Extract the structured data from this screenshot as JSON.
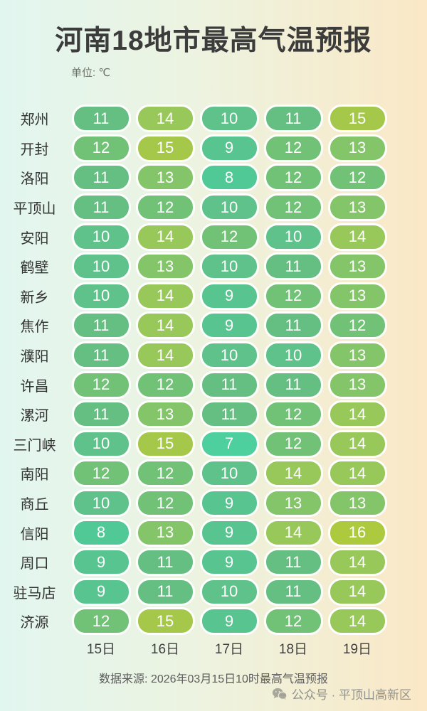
{
  "header": {
    "title": "河南18地市最高气温预报",
    "unit_label": "单位: ℃"
  },
  "chart_data": {
    "type": "heatmap",
    "title": "河南18地市最高气温预报",
    "unit": "℃",
    "categories": [
      "15日",
      "16日",
      "17日",
      "18日",
      "19日"
    ],
    "series": [
      {
        "name": "郑州",
        "values": [
          11,
          14,
          10,
          11,
          15
        ]
      },
      {
        "name": "开封",
        "values": [
          12,
          15,
          9,
          12,
          13
        ]
      },
      {
        "name": "洛阳",
        "values": [
          11,
          13,
          8,
          12,
          12
        ]
      },
      {
        "name": "平顶山",
        "values": [
          11,
          12,
          10,
          12,
          13
        ]
      },
      {
        "name": "安阳",
        "values": [
          10,
          14,
          12,
          10,
          14
        ]
      },
      {
        "name": "鹤壁",
        "values": [
          10,
          13,
          10,
          11,
          13
        ]
      },
      {
        "name": "新乡",
        "values": [
          10,
          14,
          9,
          12,
          13
        ]
      },
      {
        "name": "焦作",
        "values": [
          11,
          14,
          9,
          11,
          12
        ]
      },
      {
        "name": "濮阳",
        "values": [
          11,
          14,
          10,
          10,
          13
        ]
      },
      {
        "name": "许昌",
        "values": [
          12,
          12,
          11,
          11,
          13
        ]
      },
      {
        "name": "漯河",
        "values": [
          11,
          13,
          11,
          12,
          14
        ]
      },
      {
        "name": "三门峡",
        "values": [
          10,
          15,
          7,
          12,
          14
        ]
      },
      {
        "name": "南阳",
        "values": [
          12,
          12,
          10,
          14,
          14
        ]
      },
      {
        "name": "商丘",
        "values": [
          10,
          12,
          9,
          13,
          13
        ]
      },
      {
        "name": "信阳",
        "values": [
          8,
          13,
          9,
          14,
          16
        ]
      },
      {
        "name": "周口",
        "values": [
          9,
          11,
          9,
          11,
          14
        ]
      },
      {
        "name": "驻马店",
        "values": [
          9,
          11,
          10,
          11,
          14
        ]
      },
      {
        "name": "济源",
        "values": [
          12,
          15,
          9,
          12,
          14
        ]
      }
    ],
    "value_range": [
      7,
      16
    ]
  },
  "table": {
    "dates": [
      "15日",
      "16日",
      "17日",
      "18日",
      "19日"
    ]
  },
  "temp_colors": {
    "7": "#4ecf9e",
    "8": "#51c996",
    "9": "#58c591",
    "10": "#5ec28a",
    "11": "#66bf82",
    "12": "#71c277",
    "13": "#84c56a",
    "14": "#98c75a",
    "15": "#a5c84b",
    "16": "#adc93e"
  },
  "colors": {
    "background_left": "#e2f6f0",
    "background_right": "#fae8c6",
    "pill_border": "#ffffff",
    "pill_text": "#ffffff",
    "title_text": "#3c3c3c"
  },
  "footer": {
    "source": "数据来源: 2026年03月15日10时最高气温预报",
    "wechat_icon": "wechat-icon",
    "account": "公众号 · 平顶山高新区"
  }
}
